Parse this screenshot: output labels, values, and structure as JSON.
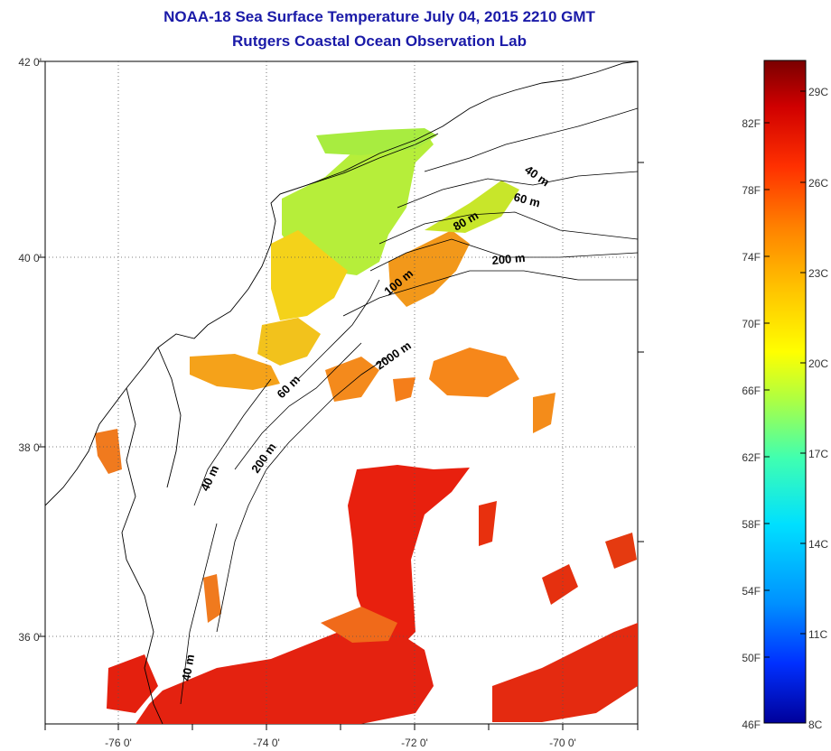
{
  "title": {
    "line1": "NOAA-18 Sea Surface Temperature July 04, 2015 2210 GMT",
    "line2": "Rutgers Coastal Ocean Observation Lab"
  },
  "map": {
    "lat_labels": [
      "42 0'",
      "40 0'",
      "38 0'",
      "36 0'"
    ],
    "lon_labels": [
      "-76 0'",
      "-74 0'",
      "-72 0'",
      "-70 0'"
    ],
    "grid": "dotted",
    "isobath_labels": [
      "40 m",
      "60 m",
      "80 m",
      "200 m",
      "100 m",
      "2000 m",
      "60 m",
      "200 m",
      "40 m",
      "40 m"
    ]
  },
  "colorbar": {
    "fahrenheit_labels": [
      "82F",
      "78F",
      "74F",
      "70F",
      "66F",
      "62F",
      "58F",
      "54F",
      "50F",
      "46F"
    ],
    "celsius_labels": [
      "29C",
      "26C",
      "23C",
      "20C",
      "17C",
      "14C",
      "11C",
      "8C"
    ],
    "colors": [
      "#7a0000",
      "#d00000",
      "#ff3000",
      "#ff8000",
      "#ffc000",
      "#ffff00",
      "#b0ff40",
      "#40ffb0",
      "#00e0ff",
      "#0090ff",
      "#0030ff",
      "#00009a"
    ]
  }
}
